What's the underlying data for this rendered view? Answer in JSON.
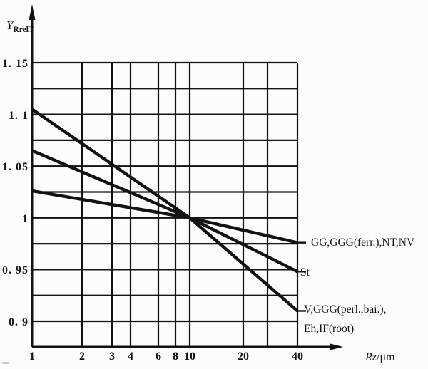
{
  "colors": {
    "ink": "#121212",
    "background": "#fcfcfc",
    "artifact": "#c9c9c9"
  },
  "chart_data": {
    "type": "line",
    "x_scale": "log",
    "grid": "both",
    "legend_position": "right-of-plot",
    "x_axis": {
      "symbol": "Rz",
      "unit": "/μm",
      "range": [
        1,
        40
      ]
    },
    "y_axis": {
      "symbol": "Y",
      "subscript": "RrelT",
      "range": [
        0.875,
        1.15
      ]
    },
    "x_ticks": [
      {
        "value": 1,
        "label": "1"
      },
      {
        "value": 2,
        "label": "2"
      },
      {
        "value": 3,
        "label": "3"
      },
      {
        "value": 4,
        "label": "4"
      },
      {
        "value": 6,
        "label": "6"
      },
      {
        "value": 8,
        "label": "8"
      },
      {
        "value": 10,
        "label": "10"
      },
      {
        "value": 20,
        "label": "20"
      },
      {
        "value": 30,
        "label": ""
      },
      {
        "value": 40,
        "label": "40"
      }
    ],
    "y_ticks": [
      {
        "value": 1.15,
        "label": "1. 15"
      },
      {
        "value": 1.125,
        "label": ""
      },
      {
        "value": 1.1,
        "label": "1. 1"
      },
      {
        "value": 1.075,
        "label": ""
      },
      {
        "value": 1.05,
        "label": "1. 05"
      },
      {
        "value": 1.025,
        "label": ""
      },
      {
        "value": 1.0,
        "label": "1"
      },
      {
        "value": 0.975,
        "label": ""
      },
      {
        "value": 0.95,
        "label": "0. 95"
      },
      {
        "value": 0.925,
        "label": ""
      },
      {
        "value": 0.9,
        "label": "0. 9"
      }
    ],
    "series": [
      {
        "name": "GG,GGG(ferr.),NT,NV",
        "label_lines": [
          "GG,GGG(ferr.),NT,NV"
        ],
        "x": [
          1,
          10,
          40
        ],
        "y": [
          1.026,
          1.0,
          0.976
        ]
      },
      {
        "name": "St",
        "label_lines": [
          "St"
        ],
        "x": [
          1,
          10,
          40
        ],
        "y": [
          1.065,
          1.0,
          0.948
        ]
      },
      {
        "name": "V,GGG(perl.,bai.),Eh,IF(root)",
        "label_lines": [
          "V,GGG(perl.,bai.),",
          "Eh,IF(root)"
        ],
        "x": [
          1,
          10,
          40
        ],
        "y": [
          1.105,
          1.0,
          0.91
        ]
      }
    ]
  }
}
